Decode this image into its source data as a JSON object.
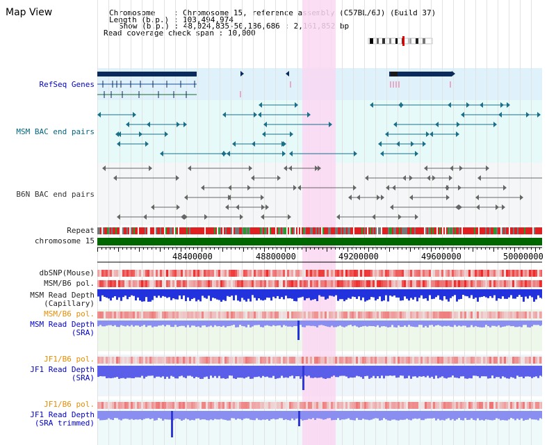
{
  "title": "Map View",
  "info": {
    "chromosome_label": "Chromosome",
    "chromosome_value": "Chromosome 15, reference assembly (C57BL/6J) (Build 37)",
    "length_label": "Length (b.p.)",
    "length_value": "103,494,974",
    "show_label": "Show (b.p.)",
    "show_value": "48,024,835-50,186,686 : 2,161,852 bp",
    "span_label": "Read coverage check span",
    "span_value": "10,000"
  },
  "tracks": {
    "refseq": "RefSeq Genes",
    "msm_bac": "MSM BAC end pairs",
    "b6n_bac": "B6N BAC end pairs",
    "repeat": "Repeat",
    "chromosome": "chromosome 15",
    "dbsnp": "dbSNP(Mouse)",
    "msm_b6_pol": "MSM/B6 pol.",
    "msm_depth_cap_1": "MSM Read Depth",
    "msm_depth_cap_2": "(Capillary)",
    "msm_b6_pol_2": "MSM/B6 pol.",
    "msm_depth_sra_1": "MSM Read Depth",
    "msm_depth_sra_2": "(SRA)",
    "jf1_b6_pol": "JF1/B6 pol.",
    "jf1_depth_sra_1": "JF1 Read Depth",
    "jf1_depth_sra_2": "(SRA)",
    "jf1_b6_pol_2": "JF1/B6 pol.",
    "jf1_depth_trim_1": "JF1 Read Depth",
    "jf1_depth_trim_2": "(SRA trimmed)"
  },
  "ruler": [
    "48400000",
    "48800000",
    "49200000",
    "49600000",
    "50000000"
  ],
  "colors": {
    "refseq_bg": "#dff2fb",
    "msm_bg": "#e6fafa",
    "highlight": "#fad7f2",
    "chromosome": "#006600",
    "depth_blue": "#2233dd",
    "depth_light": "#8a8ef0",
    "snp_red": "#e83030",
    "label_blue": "#0000cc",
    "label_orange": "#e88c00"
  }
}
